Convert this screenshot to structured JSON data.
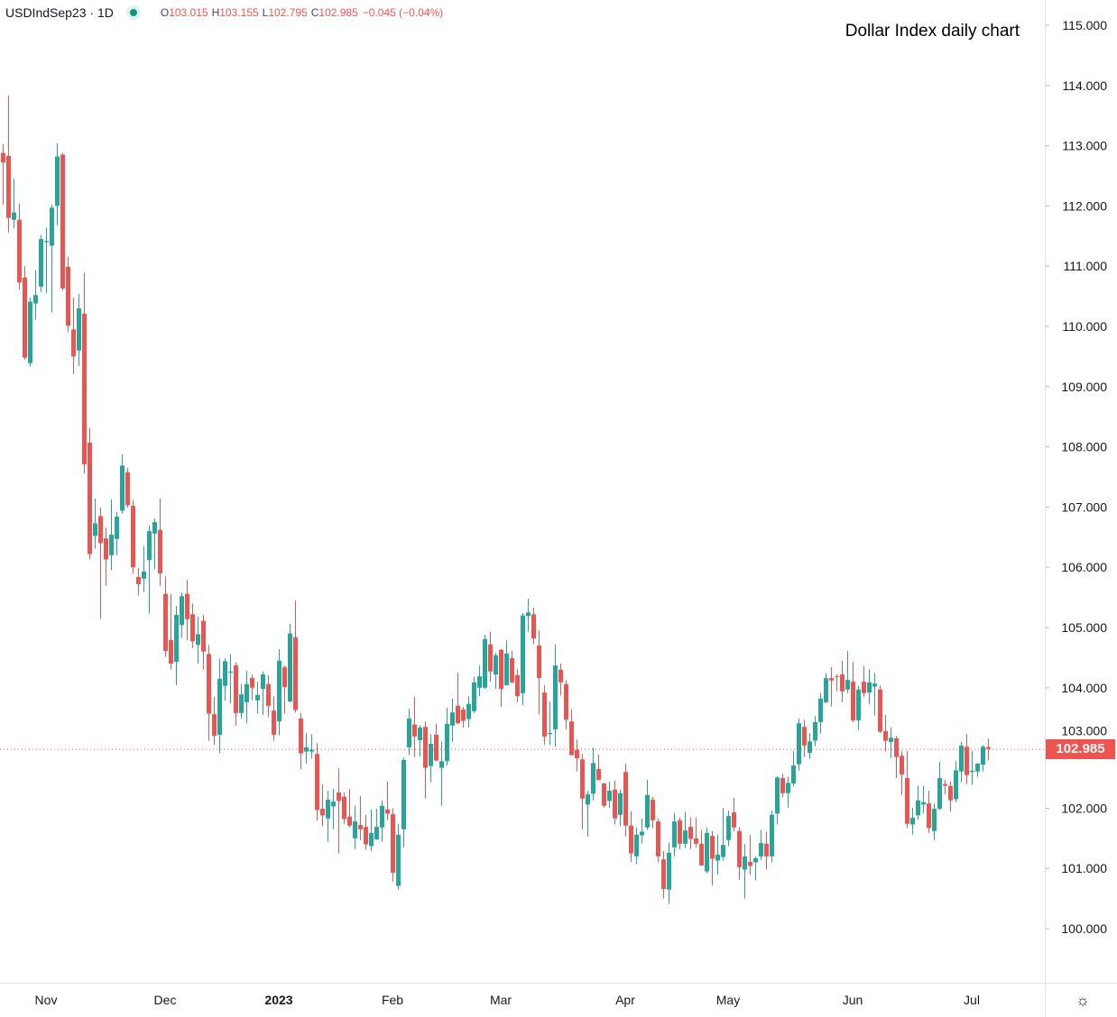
{
  "header": {
    "symbol": "USDIndSep23 · 1D",
    "open_label": "O",
    "open": "103.015",
    "high_label": "H",
    "high": "103.155",
    "low_label": "L",
    "low": "102.795",
    "close_label": "C",
    "close": "102.985",
    "change": "−0.045 (−0.04%)"
  },
  "settings_icon": "gear-icon",
  "colors": {
    "up": "#26a69a",
    "down": "#ef5350",
    "axis_text": "#131722",
    "grid_line": "#e0e3eb"
  },
  "chart_data": {
    "type": "candlestick",
    "title": "Dollar Index daily chart",
    "ylim": [
      99.1,
      115.4
    ],
    "y_ticks": [
      "100.000",
      "101.000",
      "102.000",
      "103.000",
      "104.000",
      "105.000",
      "106.000",
      "107.000",
      "108.000",
      "109.000",
      "110.000",
      "111.000",
      "112.000",
      "113.000",
      "114.000",
      "115.000"
    ],
    "last_price": "102.985",
    "grid": false,
    "x_labels": [
      {
        "label": "Nov",
        "index": 8
      },
      {
        "label": "Dec",
        "index": 30
      },
      {
        "label": "2023",
        "index": 51,
        "bold": true
      },
      {
        "label": "Feb",
        "index": 72
      },
      {
        "label": "Mar",
        "index": 92
      },
      {
        "label": "Apr",
        "index": 115
      },
      {
        "label": "May",
        "index": 134
      },
      {
        "label": "Jun",
        "index": 157
      },
      {
        "label": "Jul",
        "index": 179
      }
    ],
    "ohlc_fields": [
      "open",
      "high",
      "low",
      "close"
    ],
    "candles": [
      [
        112.88,
        113.03,
        112.02,
        112.72
      ],
      [
        112.83,
        113.83,
        111.56,
        111.8
      ],
      [
        111.77,
        112.45,
        111.63,
        111.89
      ],
      [
        111.77,
        112.04,
        110.61,
        110.73
      ],
      [
        110.81,
        111.0,
        109.45,
        109.48
      ],
      [
        109.39,
        110.48,
        109.34,
        110.41
      ],
      [
        110.38,
        110.93,
        110.11,
        110.52
      ],
      [
        110.66,
        111.52,
        110.57,
        111.45
      ],
      [
        111.4,
        111.64,
        110.55,
        111.42
      ],
      [
        111.34,
        112.02,
        110.23,
        111.97
      ],
      [
        112.0,
        113.04,
        111.68,
        112.82
      ],
      [
        112.85,
        112.88,
        110.59,
        110.63
      ],
      [
        110.99,
        111.16,
        109.9,
        110.01
      ],
      [
        109.95,
        110.48,
        109.21,
        109.5
      ],
      [
        109.6,
        110.54,
        109.34,
        110.3
      ],
      [
        110.21,
        110.89,
        107.56,
        107.71
      ],
      [
        108.07,
        108.32,
        106.13,
        106.22
      ],
      [
        106.52,
        107.14,
        106.31,
        106.73
      ],
      [
        106.85,
        106.99,
        105.14,
        106.4
      ],
      [
        106.48,
        106.66,
        105.69,
        106.13
      ],
      [
        106.2,
        107.13,
        105.95,
        106.54
      ],
      [
        106.47,
        106.92,
        106.2,
        106.84
      ],
      [
        106.94,
        107.88,
        106.89,
        107.69
      ],
      [
        107.58,
        107.65,
        106.99,
        107.03
      ],
      [
        107.02,
        107.12,
        105.89,
        106.0
      ],
      [
        105.84,
        105.99,
        105.53,
        105.72
      ],
      [
        105.81,
        106.35,
        105.59,
        105.93
      ],
      [
        106.12,
        106.69,
        105.23,
        106.6
      ],
      [
        106.56,
        106.81,
        105.97,
        106.75
      ],
      [
        106.62,
        107.14,
        105.69,
        105.9
      ],
      [
        105.56,
        105.85,
        104.51,
        104.61
      ],
      [
        104.79,
        105.56,
        104.3,
        104.4
      ],
      [
        104.43,
        105.36,
        104.04,
        105.21
      ],
      [
        105.04,
        105.58,
        104.83,
        105.52
      ],
      [
        105.56,
        105.79,
        104.79,
        105.14
      ],
      [
        105.22,
        105.4,
        104.66,
        104.77
      ],
      [
        104.71,
        105.18,
        104.4,
        104.89
      ],
      [
        105.11,
        105.21,
        104.3,
        104.6
      ],
      [
        104.56,
        104.71,
        103.12,
        103.57
      ],
      [
        103.56,
        103.85,
        103.05,
        103.2
      ],
      [
        103.22,
        104.48,
        102.91,
        104.15
      ],
      [
        104.03,
        104.49,
        103.79,
        104.44
      ],
      [
        104.25,
        104.55,
        103.74,
        104.27
      ],
      [
        104.37,
        104.42,
        103.37,
        103.58
      ],
      [
        103.58,
        104.06,
        103.49,
        103.89
      ],
      [
        103.76,
        104.28,
        103.41,
        104.06
      ],
      [
        104.16,
        104.22,
        103.79,
        104.0
      ],
      [
        103.79,
        104.1,
        103.57,
        103.88
      ],
      [
        103.98,
        104.27,
        103.55,
        104.22
      ],
      [
        104.06,
        104.21,
        103.51,
        103.7
      ],
      [
        103.62,
        103.86,
        103.12,
        103.22
      ],
      [
        103.44,
        104.64,
        103.21,
        104.45
      ],
      [
        104.34,
        104.37,
        103.57,
        104.01
      ],
      [
        103.77,
        105.06,
        103.76,
        104.9
      ],
      [
        104.84,
        105.45,
        103.59,
        103.63
      ],
      [
        103.49,
        103.58,
        102.65,
        102.91
      ],
      [
        102.94,
        103.25,
        102.74,
        103.01
      ],
      [
        102.94,
        103.23,
        102.83,
        102.97
      ],
      [
        102.9,
        103.08,
        101.79,
        101.97
      ],
      [
        101.99,
        102.4,
        101.7,
        101.88
      ],
      [
        101.83,
        102.29,
        101.44,
        102.14
      ],
      [
        102.03,
        102.32,
        101.65,
        102.11
      ],
      [
        102.26,
        102.66,
        101.25,
        102.12
      ],
      [
        102.19,
        102.26,
        101.74,
        101.82
      ],
      [
        101.86,
        102.32,
        101.68,
        101.71
      ],
      [
        101.5,
        102.04,
        101.32,
        101.78
      ],
      [
        101.72,
        102.2,
        101.47,
        101.65
      ],
      [
        101.69,
        101.89,
        101.31,
        101.4
      ],
      [
        101.37,
        101.98,
        101.28,
        101.59
      ],
      [
        101.48,
        101.99,
        101.47,
        101.69
      ],
      [
        101.68,
        102.13,
        101.44,
        102.04
      ],
      [
        101.98,
        102.44,
        101.8,
        101.91
      ],
      [
        101.9,
        102.0,
        100.78,
        100.93
      ],
      [
        100.71,
        101.74,
        100.65,
        101.56
      ],
      [
        101.65,
        102.84,
        101.35,
        102.8
      ],
      [
        103.01,
        103.65,
        102.88,
        103.49
      ],
      [
        103.39,
        103.85,
        102.85,
        103.19
      ],
      [
        103.13,
        103.38,
        102.86,
        103.34
      ],
      [
        103.35,
        103.44,
        102.16,
        102.67
      ],
      [
        102.7,
        103.23,
        102.43,
        103.07
      ],
      [
        103.22,
        103.4,
        102.78,
        102.79
      ],
      [
        102.67,
        103.11,
        102.04,
        102.78
      ],
      [
        102.78,
        103.67,
        102.71,
        103.4
      ],
      [
        103.37,
        103.82,
        103.1,
        103.59
      ],
      [
        103.7,
        104.25,
        103.4,
        103.41
      ],
      [
        103.64,
        103.68,
        103.34,
        103.45
      ],
      [
        103.48,
        103.86,
        103.34,
        103.73
      ],
      [
        103.61,
        104.18,
        103.58,
        104.09
      ],
      [
        104.0,
        104.37,
        103.86,
        104.19
      ],
      [
        104.0,
        104.88,
        103.98,
        104.81
      ],
      [
        104.72,
        104.93,
        104.1,
        104.27
      ],
      [
        104.22,
        104.58,
        103.98,
        104.54
      ],
      [
        104.63,
        104.64,
        103.68,
        103.98
      ],
      [
        104.04,
        104.79,
        104.04,
        104.57
      ],
      [
        104.49,
        104.61,
        104.07,
        104.09
      ],
      [
        104.21,
        104.31,
        103.76,
        103.86
      ],
      [
        103.91,
        105.24,
        103.71,
        105.2
      ],
      [
        105.19,
        105.48,
        104.93,
        105.25
      ],
      [
        105.22,
        105.33,
        104.72,
        104.82
      ],
      [
        104.7,
        104.95,
        103.56,
        104.16
      ],
      [
        103.92,
        104.04,
        103.05,
        103.19
      ],
      [
        103.23,
        103.77,
        103.05,
        103.25
      ],
      [
        103.31,
        104.72,
        103.02,
        104.37
      ],
      [
        104.3,
        104.4,
        103.87,
        104.09
      ],
      [
        104.06,
        104.12,
        103.31,
        103.47
      ],
      [
        103.44,
        103.64,
        102.88,
        102.88
      ],
      [
        102.97,
        103.14,
        102.61,
        102.83
      ],
      [
        102.81,
        102.9,
        101.65,
        102.16
      ],
      [
        102.06,
        102.29,
        101.53,
        102.23
      ],
      [
        102.24,
        103.01,
        102.13,
        102.75
      ],
      [
        102.65,
        102.89,
        102.46,
        102.47
      ],
      [
        102.41,
        102.42,
        102.01,
        102.04
      ],
      [
        102.12,
        102.44,
        102.01,
        102.29
      ],
      [
        102.31,
        102.46,
        101.73,
        101.83
      ],
      [
        101.89,
        102.31,
        101.7,
        102.25
      ],
      [
        102.6,
        102.74,
        101.53,
        101.71
      ],
      [
        101.71,
        101.95,
        101.11,
        101.25
      ],
      [
        101.2,
        101.68,
        101.07,
        101.56
      ],
      [
        101.55,
        101.83,
        101.41,
        101.61
      ],
      [
        101.68,
        102.47,
        101.64,
        102.22
      ],
      [
        102.14,
        102.19,
        101.67,
        101.8
      ],
      [
        101.78,
        101.83,
        101.1,
        101.2
      ],
      [
        101.15,
        101.29,
        100.5,
        100.66
      ],
      [
        100.65,
        101.43,
        100.41,
        101.26
      ],
      [
        101.35,
        101.92,
        101.2,
        101.78
      ],
      [
        101.8,
        101.85,
        101.32,
        101.41
      ],
      [
        101.41,
        101.94,
        101.34,
        101.63
      ],
      [
        101.69,
        101.85,
        101.32,
        101.49
      ],
      [
        101.5,
        101.85,
        101.35,
        101.41
      ],
      [
        101.41,
        101.64,
        101.04,
        101.05
      ],
      [
        100.95,
        101.68,
        100.92,
        101.59
      ],
      [
        101.54,
        101.62,
        100.72,
        101.16
      ],
      [
        101.13,
        101.56,
        100.9,
        101.23
      ],
      [
        101.19,
        102.0,
        101.13,
        101.39
      ],
      [
        101.47,
        101.96,
        101.37,
        101.87
      ],
      [
        101.93,
        102.17,
        101.62,
        101.68
      ],
      [
        101.62,
        101.69,
        100.81,
        101.02
      ],
      [
        100.98,
        101.41,
        100.5,
        101.2
      ],
      [
        101.11,
        101.56,
        100.89,
        101.04
      ],
      [
        101.1,
        101.2,
        100.8,
        101.17
      ],
      [
        101.2,
        101.64,
        101.14,
        101.42
      ],
      [
        101.41,
        101.61,
        100.98,
        101.2
      ],
      [
        101.2,
        101.96,
        101.1,
        101.89
      ],
      [
        101.91,
        102.53,
        101.73,
        102.51
      ],
      [
        102.5,
        102.57,
        102.18,
        102.25
      ],
      [
        102.25,
        102.53,
        102.01,
        102.42
      ],
      [
        102.41,
        102.95,
        102.36,
        102.71
      ],
      [
        102.73,
        103.49,
        102.62,
        103.41
      ],
      [
        103.35,
        103.47,
        102.85,
        103.04
      ],
      [
        102.92,
        103.25,
        102.82,
        103.11
      ],
      [
        103.12,
        103.53,
        103.03,
        103.43
      ],
      [
        103.43,
        103.91,
        103.24,
        103.82
      ],
      [
        103.76,
        104.24,
        103.74,
        104.16
      ],
      [
        104.16,
        104.34,
        103.69,
        104.12
      ],
      [
        104.19,
        104.22,
        103.94,
        104.18
      ],
      [
        104.22,
        104.45,
        103.76,
        103.94
      ],
      [
        103.97,
        104.61,
        103.91,
        104.13
      ],
      [
        104.1,
        104.43,
        103.43,
        103.46
      ],
      [
        103.46,
        104.03,
        103.3,
        103.97
      ],
      [
        104.1,
        104.36,
        103.85,
        103.91
      ],
      [
        103.92,
        104.31,
        103.73,
        104.09
      ],
      [
        104.02,
        104.25,
        103.54,
        104.07
      ],
      [
        103.97,
        104.04,
        103.25,
        103.27
      ],
      [
        103.28,
        103.55,
        102.94,
        103.12
      ],
      [
        103.1,
        103.34,
        102.83,
        103.17
      ],
      [
        103.16,
        103.2,
        102.5,
        102.85
      ],
      [
        102.87,
        102.95,
        102.22,
        102.56
      ],
      [
        102.5,
        102.95,
        101.67,
        101.74
      ],
      [
        101.73,
        102.01,
        101.56,
        101.84
      ],
      [
        101.88,
        102.37,
        101.81,
        102.13
      ],
      [
        102.06,
        102.37,
        101.91,
        102.1
      ],
      [
        102.08,
        102.29,
        101.59,
        101.67
      ],
      [
        101.62,
        102.08,
        101.47,
        101.99
      ],
      [
        101.99,
        102.77,
        101.97,
        102.5
      ],
      [
        102.4,
        102.47,
        102.23,
        102.37
      ],
      [
        102.37,
        102.44,
        101.94,
        102.13
      ],
      [
        102.15,
        102.78,
        102.1,
        102.63
      ],
      [
        102.61,
        103.1,
        102.43,
        103.04
      ],
      [
        103.02,
        103.23,
        102.4,
        102.55
      ],
      [
        102.6,
        102.95,
        102.39,
        102.62
      ],
      [
        102.61,
        102.75,
        102.52,
        102.74
      ],
      [
        102.72,
        103.05,
        102.61,
        103.02
      ],
      [
        103.015,
        103.155,
        102.795,
        102.985
      ]
    ]
  }
}
